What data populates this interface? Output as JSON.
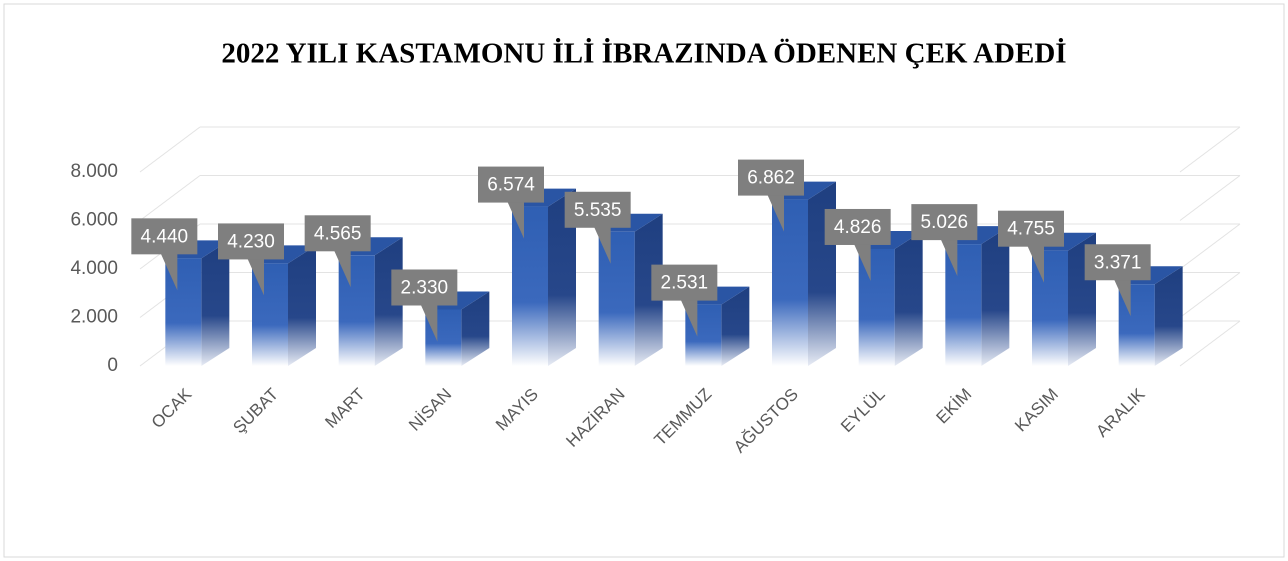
{
  "chart_data": {
    "type": "bar3d",
    "title": "2022 YILI KASTAMONU İLİ İBRAZINDA ÖDENEN ÇEK ADEDİ",
    "categories": [
      "OCAK",
      "ŞUBAT",
      "MART",
      "NİSAN",
      "MAYIS",
      "HAZİRAN",
      "TEMMUZ",
      "AĞUSTOS",
      "EYLÜL",
      "EKİM",
      "KASIM",
      "ARALIK"
    ],
    "values": [
      4440,
      4230,
      4565,
      2330,
      6574,
      5535,
      2531,
      6862,
      4826,
      5026,
      4755,
      3371
    ],
    "value_labels": [
      "4.440",
      "4.230",
      "4.565",
      "2.330",
      "6.574",
      "5.535",
      "2.531",
      "6.862",
      "4.826",
      "5.026",
      "4.755",
      "3.371"
    ],
    "color": "#2f5fb3",
    "ylim": [
      0,
      8000
    ],
    "yticks": [
      0,
      {
        "value": 2000,
        "label": "2.000"
      },
      {
        "value": 4000,
        "label": "4.000"
      },
      {
        "value": 6000,
        "label": "6.000"
      },
      {
        "value": 8000,
        "label": "8.000"
      }
    ],
    "grid": true
  }
}
